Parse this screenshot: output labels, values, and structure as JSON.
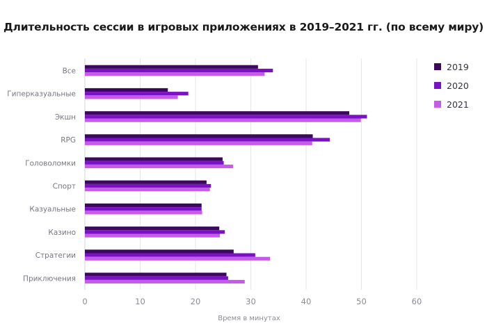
{
  "chart_data": {
    "type": "bar",
    "orientation": "horizontal",
    "title": "Длительность сессии в игровых приложениях в 2019–2021 гг. (по всему миру)",
    "xlabel": "Время в минутах",
    "ylabel": "",
    "xlim": [
      0,
      60
    ],
    "x_ticks": [
      0,
      10,
      20,
      30,
      40,
      50,
      60
    ],
    "grid": "vertical",
    "legend_position": "top-right",
    "categories": [
      "Все",
      "Гиперказуальные",
      "Экшн",
      "RPG",
      "Головоломки",
      "Спорт",
      "Казуальные",
      "Казино",
      "Стратегии",
      "Приключения"
    ],
    "series": [
      {
        "name": "2019",
        "color": "#3b0a5c",
        "values": [
          31.3,
          15.0,
          47.8,
          41.2,
          24.9,
          22.0,
          21.1,
          24.3,
          26.9,
          25.6
        ]
      },
      {
        "name": "2020",
        "color": "#7a12c4",
        "values": [
          34.0,
          18.7,
          51.0,
          44.3,
          25.1,
          22.8,
          21.1,
          25.3,
          30.8,
          25.9
        ]
      },
      {
        "name": "2021",
        "color": "#c55be8",
        "values": [
          32.5,
          16.8,
          49.9,
          41.1,
          26.8,
          22.6,
          21.2,
          24.4,
          33.5,
          28.9
        ]
      }
    ]
  }
}
